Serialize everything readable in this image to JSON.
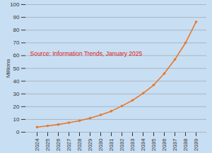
{
  "chart_data": {
    "type": "line",
    "categories": [
      "2024",
      "2025",
      "2026",
      "2027",
      "2028",
      "2029",
      "2030",
      "2031",
      "2032",
      "2033",
      "2034",
      "2035",
      "2036",
      "2037",
      "2038",
      "2039"
    ],
    "values": [
      4,
      5,
      6,
      7.5,
      9,
      11,
      13.5,
      16.5,
      20.5,
      25,
      30.5,
      37,
      46,
      57,
      70,
      86.5
    ],
    "color": "#e8782a",
    "marker": "circle",
    "line_style": "solid",
    "y_label": "Millions",
    "annotation": "Source: Information Trends, January 2025",
    "ylim": [
      0,
      100
    ],
    "yticks": [
      0,
      10,
      20,
      30,
      40,
      50,
      60,
      70,
      80,
      90,
      100
    ],
    "grid": true
  }
}
